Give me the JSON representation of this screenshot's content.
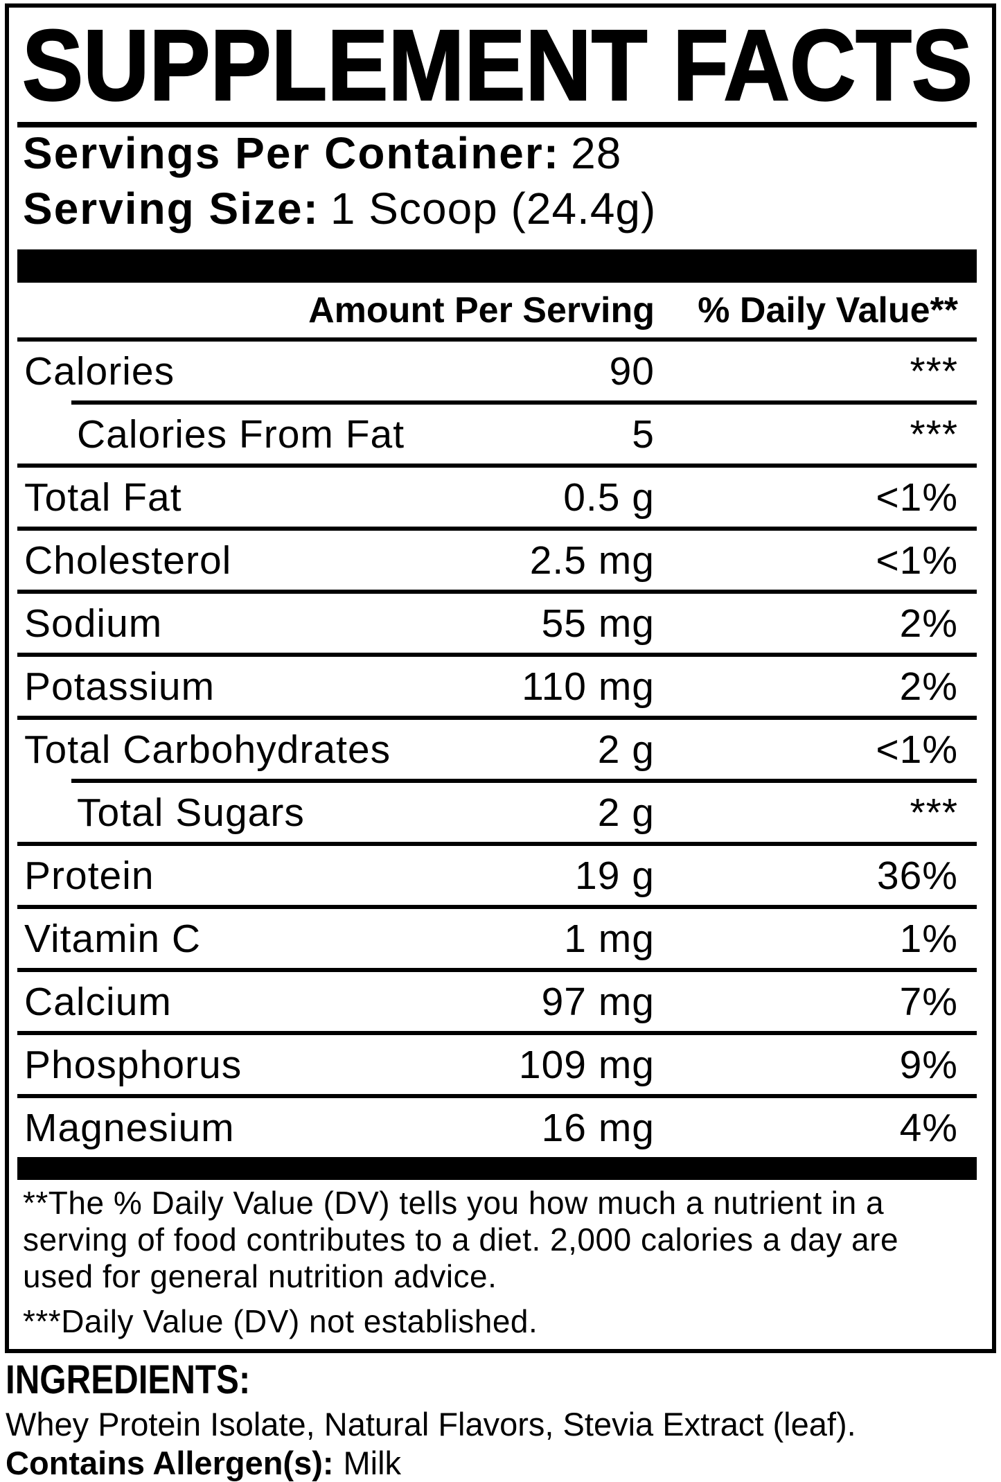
{
  "title": "SUPPLEMENT FACTS",
  "serving_info": {
    "servings_per_container_label": "Servings Per Container:",
    "servings_per_container_value": "28",
    "serving_size_label": "Serving Size:",
    "serving_size_value": "1 Scoop (24.4g)"
  },
  "table": {
    "header": {
      "amount": "Amount Per Serving",
      "daily_value": "% Daily Value**"
    },
    "rows": [
      {
        "label": "Calories",
        "amount": "90",
        "dv": "***"
      },
      {
        "label": "Calories From Fat",
        "amount": "5",
        "dv": "***"
      },
      {
        "label": "Total Fat",
        "amount": "0.5 g",
        "dv": "<1%"
      },
      {
        "label": "Cholesterol",
        "amount": "2.5 mg",
        "dv": "<1%"
      },
      {
        "label": "Sodium",
        "amount": "55 mg",
        "dv": "2%"
      },
      {
        "label": "Potassium",
        "amount": "110 mg",
        "dv": "2%"
      },
      {
        "label": "Total Carbohydrates",
        "amount": "2 g",
        "dv": "<1%"
      },
      {
        "label": "Total Sugars",
        "amount": "2 g",
        "dv": "***"
      },
      {
        "label": "Protein",
        "amount": "19 g",
        "dv": "36%"
      },
      {
        "label": "Vitamin C",
        "amount": "1 mg",
        "dv": "1%"
      },
      {
        "label": "Calcium",
        "amount": "97 mg",
        "dv": "7%"
      },
      {
        "label": "Phosphorus",
        "amount": "109 mg",
        "dv": "9%"
      },
      {
        "label": "Magnesium",
        "amount": "16 mg",
        "dv": "4%"
      }
    ]
  },
  "footnotes": {
    "dv_note_lines": [
      "**The % Daily Value (DV) tells you how much a nutrient in a",
      "serving of food contributes to a diet. 2,000 calories a day are",
      "used for general nutrition advice."
    ],
    "not_established": "***Daily Value (DV) not established."
  },
  "ingredients": {
    "heading": "INGREDIENTS:",
    "list": "Whey Protein Isolate, Natural Flavors, Stevia Extract (leaf).",
    "allergen_label": "Contains Allergen(s):",
    "allergen_value": "Milk"
  },
  "colors": {
    "ink": "#000000",
    "paper": "#ffffff"
  }
}
